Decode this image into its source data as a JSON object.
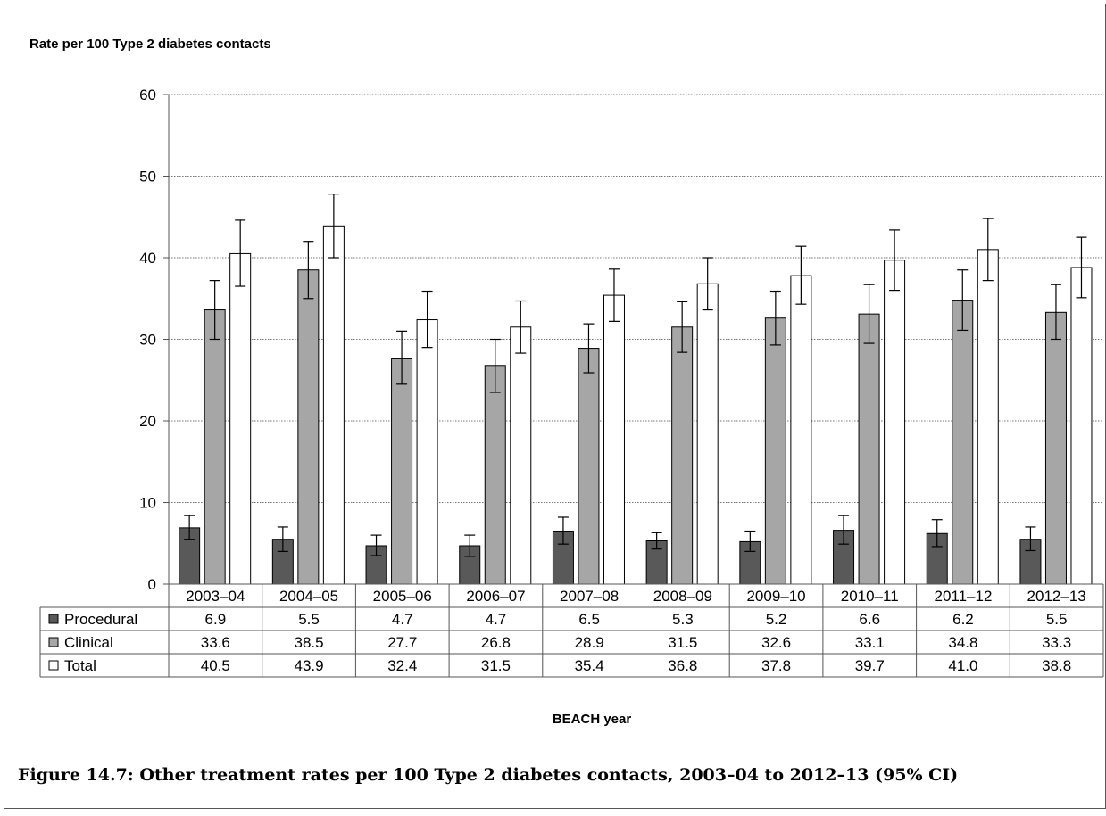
{
  "chart_data": {
    "type": "bar",
    "ylabel": "Rate per 100 Type 2 diabetes contacts",
    "xlabel": "BEACH year",
    "ylim": [
      0,
      60
    ],
    "yticks": [
      "0",
      "10",
      "20",
      "30",
      "40",
      "50",
      "60"
    ],
    "grid": true,
    "legend": "data-table",
    "categories": [
      "2003–04",
      "2004–05",
      "2005–06",
      "2006–07",
      "2007–08",
      "2008–09",
      "2009–10",
      "2010–11",
      "2011–12",
      "2012–13"
    ],
    "series": [
      {
        "name": "Procedural",
        "color": "#595959",
        "values": [
          6.9,
          5.5,
          4.7,
          4.7,
          6.5,
          5.3,
          5.2,
          6.6,
          6.2,
          5.5
        ],
        "labels": [
          "6.9",
          "5.5",
          "4.7",
          "4.7",
          "6.5",
          "5.3",
          "5.2",
          "6.6",
          "6.2",
          "5.5"
        ],
        "ci_low": [
          5.5,
          4.0,
          3.5,
          3.4,
          4.9,
          4.3,
          4.0,
          4.9,
          4.6,
          4.1
        ],
        "ci_high": [
          8.4,
          7.0,
          6.0,
          6.0,
          8.2,
          6.3,
          6.5,
          8.4,
          7.9,
          7.0
        ]
      },
      {
        "name": "Clinical",
        "color": "#a6a6a6",
        "values": [
          33.6,
          38.5,
          27.7,
          26.8,
          28.9,
          31.5,
          32.6,
          33.1,
          34.8,
          33.3
        ],
        "labels": [
          "33.6",
          "38.5",
          "27.7",
          "26.8",
          "28.9",
          "31.5",
          "32.6",
          "33.1",
          "34.8",
          "33.3"
        ],
        "ci_low": [
          30.0,
          35.0,
          24.5,
          23.5,
          25.9,
          28.4,
          29.3,
          29.5,
          31.1,
          30.0
        ],
        "ci_high": [
          37.2,
          42.0,
          31.0,
          30.0,
          31.9,
          34.6,
          35.9,
          36.7,
          38.5,
          36.7
        ]
      },
      {
        "name": "Total",
        "color": "#ffffff",
        "values": [
          40.5,
          43.9,
          32.4,
          31.5,
          35.4,
          36.8,
          37.8,
          39.7,
          41.0,
          38.8
        ],
        "labels": [
          "40.5",
          "43.9",
          "32.4",
          "31.5",
          "35.4",
          "36.8",
          "37.8",
          "39.7",
          "41.0",
          "38.8"
        ],
        "ci_low": [
          36.5,
          40.0,
          29.0,
          28.3,
          32.2,
          33.6,
          34.3,
          36.0,
          37.2,
          35.1
        ],
        "ci_high": [
          44.6,
          47.8,
          35.9,
          34.7,
          38.6,
          40.0,
          41.4,
          43.4,
          44.8,
          42.5
        ]
      }
    ]
  },
  "caption": "Figure 14.7: Other treatment rates per 100 Type 2 diabetes contacts, 2003–04 to 2012–13 (95% CI)"
}
